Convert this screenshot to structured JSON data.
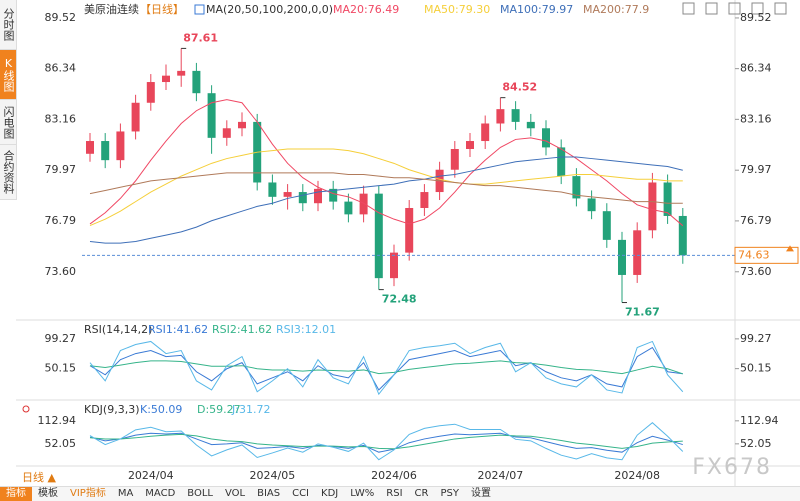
{
  "chart_data": [
    {
      "type": "candlestick",
      "title": "美原油连续",
      "period": "【日线】",
      "indicator": "MA(20,50,100,200,0,0)",
      "categories": [
        null,
        null,
        null,
        null,
        "2024/04",
        null,
        null,
        null,
        null,
        null,
        null,
        null,
        "2024/05",
        null,
        null,
        null,
        null,
        null,
        null,
        null,
        "2024/06",
        null,
        null,
        null,
        null,
        null,
        null,
        "2024/07",
        null,
        null,
        null,
        null,
        null,
        null,
        null,
        null,
        "2024/08",
        null,
        null,
        null
      ],
      "open": [
        81.0,
        81.8,
        80.6,
        82.4,
        84.2,
        85.5,
        85.9,
        86.2,
        84.8,
        82.0,
        82.6,
        83.0,
        79.2,
        78.3,
        78.6,
        77.9,
        78.8,
        78.0,
        77.2,
        78.5,
        73.2,
        74.8,
        77.6,
        78.6,
        80.0,
        81.3,
        81.8,
        82.9,
        83.8,
        83.0,
        82.6,
        81.4,
        79.6,
        78.2,
        77.4,
        75.6,
        73.4,
        76.2,
        79.2,
        77.1
      ],
      "high": [
        82.3,
        82.3,
        82.9,
        84.7,
        86.0,
        86.6,
        87.61,
        86.7,
        85.3,
        83.1,
        83.6,
        83.5,
        79.7,
        79.1,
        79.1,
        79.3,
        79.3,
        78.5,
        79.0,
        79.0,
        75.3,
        78.1,
        79.1,
        80.5,
        81.8,
        82.3,
        83.4,
        84.52,
        84.3,
        83.5,
        83.1,
        81.9,
        80.1,
        78.7,
        77.9,
        76.1,
        76.7,
        79.8,
        79.7,
        77.6
      ],
      "low": [
        80.5,
        80.1,
        80.1,
        81.9,
        83.7,
        85.0,
        85.2,
        84.3,
        81.0,
        81.5,
        82.1,
        78.7,
        77.8,
        77.5,
        77.4,
        77.4,
        77.5,
        76.7,
        76.7,
        72.48,
        72.7,
        74.3,
        77.1,
        78.1,
        79.5,
        80.8,
        81.3,
        82.4,
        82.5,
        82.1,
        80.9,
        79.1,
        77.7,
        76.9,
        75.1,
        71.67,
        72.9,
        75.7,
        76.6,
        74.1
      ],
      "close": [
        81.8,
        80.6,
        82.4,
        84.2,
        85.5,
        85.9,
        86.2,
        84.8,
        82.0,
        82.6,
        83.0,
        79.2,
        78.3,
        78.6,
        77.9,
        78.8,
        78.0,
        77.2,
        78.5,
        73.2,
        74.8,
        77.6,
        78.6,
        80.0,
        81.3,
        81.8,
        82.9,
        83.8,
        83.0,
        82.6,
        81.4,
        79.6,
        78.2,
        77.4,
        75.6,
        73.4,
        76.2,
        79.2,
        77.1,
        74.63
      ],
      "up_color": "#e8465a",
      "down_color": "#23a27a",
      "series": [
        {
          "name": "MA20:76.49",
          "color": "#f04864",
          "values": [
            76.6,
            77.3,
            78.2,
            79.3,
            80.6,
            81.8,
            82.9,
            83.7,
            84.2,
            84.4,
            84.2,
            83.0,
            81.6,
            80.4,
            79.5,
            78.9,
            78.5,
            78.3,
            77.9,
            77.3,
            76.9,
            76.6,
            76.9,
            77.6,
            78.6,
            79.7,
            80.6,
            81.4,
            81.9,
            82.0,
            81.8,
            81.3,
            80.7,
            80.0,
            79.3,
            78.5,
            77.8,
            77.5,
            77.3,
            76.49
          ]
        },
        {
          "name": "MA50:79.30",
          "color": "#f5cf3a",
          "values": [
            76.5,
            76.9,
            77.4,
            78.0,
            78.6,
            79.1,
            79.6,
            80.0,
            80.4,
            80.7,
            80.9,
            81.1,
            81.2,
            81.3,
            81.3,
            81.3,
            81.3,
            81.2,
            81.0,
            80.7,
            80.4,
            80.0,
            79.7,
            79.4,
            79.2,
            79.1,
            79.1,
            79.2,
            79.3,
            79.4,
            79.5,
            79.6,
            79.7,
            79.7,
            79.6,
            79.5,
            79.4,
            79.4,
            79.3,
            79.3
          ]
        },
        {
          "name": "MA100:79.97",
          "color": "#3e6fb8",
          "values": [
            75.5,
            75.4,
            75.4,
            75.5,
            75.7,
            75.9,
            76.1,
            76.4,
            76.8,
            77.1,
            77.4,
            77.7,
            77.9,
            78.2,
            78.4,
            78.6,
            78.7,
            78.8,
            78.9,
            79.0,
            79.1,
            79.3,
            79.4,
            79.6,
            79.7,
            79.9,
            80.1,
            80.3,
            80.5,
            80.6,
            80.7,
            80.8,
            80.8,
            80.7,
            80.6,
            80.5,
            80.4,
            80.3,
            80.2,
            79.97
          ]
        },
        {
          "name": "MA200:77.9",
          "color": "#b07a5a",
          "values": [
            78.5,
            78.7,
            78.9,
            79.1,
            79.3,
            79.4,
            79.5,
            79.6,
            79.7,
            79.8,
            79.8,
            79.8,
            79.8,
            79.8,
            79.8,
            79.8,
            79.8,
            79.7,
            79.7,
            79.6,
            79.5,
            79.5,
            79.4,
            79.3,
            79.2,
            79.1,
            79.0,
            79.0,
            78.9,
            78.8,
            78.7,
            78.6,
            78.4,
            78.3,
            78.2,
            78.1,
            78.0,
            78.0,
            77.9,
            77.9
          ]
        }
      ],
      "ylim": [
        70.7,
        90.52
      ],
      "yticks": [
        89.52,
        86.34,
        83.16,
        79.97,
        76.79,
        {
          "value": 73.6,
          "label": "73.60"
        }
      ],
      "grid": false
    },
    {
      "type": "line",
      "title": "RSI(14,14,2)",
      "series": [
        {
          "name": "RSI1:41.62",
          "color": "#3a7ad5",
          "values": [
            55,
            40,
            65,
            75,
            80,
            70,
            72,
            45,
            30,
            50,
            60,
            25,
            35,
            45,
            30,
            55,
            40,
            35,
            60,
            15,
            40,
            65,
            70,
            75,
            80,
            70,
            75,
            80,
            55,
            60,
            45,
            35,
            30,
            40,
            25,
            20,
            70,
            85,
            45,
            41.62
          ]
        },
        {
          "name": "RSI2:41.62",
          "color": "#36b48a",
          "values": [
            55,
            52,
            56,
            60,
            63,
            63,
            62,
            58,
            54,
            54,
            55,
            50,
            48,
            48,
            46,
            48,
            47,
            46,
            48,
            42,
            44,
            49,
            52,
            55,
            58,
            59,
            61,
            63,
            60,
            59,
            56,
            52,
            49,
            48,
            45,
            42,
            48,
            54,
            50,
            41.62
          ]
        },
        {
          "name": "RSI3:12.01",
          "color": "#58b8e8",
          "values": [
            60,
            30,
            80,
            90,
            95,
            75,
            80,
            30,
            15,
            55,
            70,
            12,
            30,
            50,
            20,
            65,
            35,
            25,
            70,
            8,
            40,
            80,
            85,
            88,
            92,
            75,
            85,
            92,
            45,
            60,
            35,
            25,
            20,
            40,
            15,
            10,
            85,
            95,
            40,
            12.01
          ]
        }
      ],
      "ylim": [
        5,
        104
      ],
      "yticks": [
        99.27,
        50.15
      ],
      "grid": false
    },
    {
      "type": "line",
      "title": "KDJ(9,3,3)",
      "series": [
        {
          "name": "K:50.09",
          "color": "#3a7ad5",
          "values": [
            70,
            60,
            65,
            75,
            80,
            78,
            80,
            65,
            50,
            52,
            55,
            40,
            42,
            45,
            40,
            48,
            45,
            40,
            48,
            30,
            38,
            55,
            65,
            72,
            78,
            76,
            78,
            80,
            70,
            68,
            58,
            48,
            40,
            42,
            35,
            30,
            55,
            72,
            62,
            50.09
          ]
        },
        {
          "name": "D:59.27",
          "color": "#36b48a",
          "values": [
            68,
            65,
            65,
            68,
            72,
            75,
            77,
            73,
            65,
            60,
            58,
            52,
            49,
            47,
            45,
            46,
            46,
            44,
            45,
            40,
            39,
            44,
            51,
            58,
            65,
            69,
            72,
            75,
            73,
            72,
            67,
            61,
            54,
            50,
            45,
            40,
            45,
            54,
            57,
            59.27
          ]
        },
        {
          "name": "J:31.72",
          "color": "#58b8e8",
          "values": [
            74,
            50,
            65,
            89,
            96,
            84,
            86,
            49,
            20,
            36,
            49,
            16,
            28,
            41,
            30,
            52,
            43,
            32,
            54,
            10,
            36,
            77,
            93,
            100,
            104,
            90,
            90,
            90,
            64,
            60,
            40,
            22,
            12,
            26,
            15,
            10,
            75,
            108,
            72,
            31.72
          ]
        }
      ],
      "ylim": [
        4,
        131
      ],
      "yticks": [
        112.94,
        52.05
      ],
      "grid": false
    }
  ],
  "ui": {
    "sidebar": [
      "分时图",
      "K线图",
      "闪电图",
      "合约资料"
    ],
    "period_button": "日线 ▲",
    "toolbar": [
      "指标",
      "模板",
      "VIP指标",
      "MA",
      "MACD",
      "BOLL",
      "VOL",
      "BIAS",
      "CCI",
      "KDJ",
      "LW%",
      "RSI",
      "CR",
      "PSY",
      "设置"
    ],
    "watermark": "FX678"
  }
}
